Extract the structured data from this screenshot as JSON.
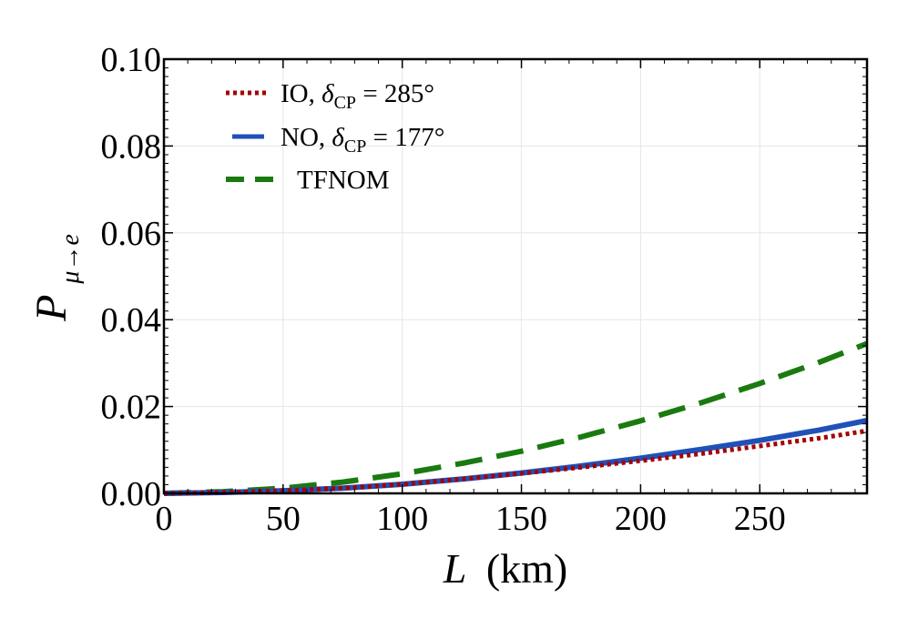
{
  "chart_data": {
    "type": "line",
    "xlabel_var": "L",
    "xlabel_unit": "(km)",
    "ylabel_main": "P",
    "ylabel_sub": "μ→e",
    "xlim": [
      0,
      295
    ],
    "ylim": [
      0,
      0.1
    ],
    "xticks": [
      "0",
      "50",
      "100",
      "150",
      "200",
      "250"
    ],
    "xtick_values": [
      0,
      50,
      100,
      150,
      200,
      250
    ],
    "yticks": [
      "0.00",
      "0.02",
      "0.04",
      "0.06",
      "0.08",
      "0.10"
    ],
    "ytick_values": [
      0,
      0.02,
      0.04,
      0.06,
      0.08,
      0.1
    ],
    "grid": true,
    "legend_position": "top-left",
    "x": [
      0,
      25,
      50,
      75,
      100,
      125,
      150,
      175,
      200,
      225,
      250,
      275,
      295
    ],
    "series": [
      {
        "name": "IO, δ",
        "name_sub": "CP",
        "name_tail": " = 285°",
        "style": "dotted",
        "color": "#a50000",
        "values": [
          0,
          0.0002,
          0.0006,
          0.0012,
          0.0021,
          0.0033,
          0.0046,
          0.006,
          0.0075,
          0.0091,
          0.0109,
          0.0127,
          0.0144
        ]
      },
      {
        "name": "NO, δ",
        "name_sub": "CP",
        "name_tail": " = 177°",
        "style": "solid",
        "color": "#2050b8",
        "values": [
          0,
          0.0002,
          0.0006,
          0.0012,
          0.0021,
          0.0033,
          0.0047,
          0.0063,
          0.0081,
          0.0101,
          0.0122,
          0.0146,
          0.0168
        ]
      },
      {
        "name": "TFNOM",
        "name_sub": "",
        "name_tail": "",
        "style": "dashed",
        "color": "#1a7a10",
        "values": [
          0,
          0.0004,
          0.0012,
          0.0026,
          0.0045,
          0.0069,
          0.0097,
          0.013,
          0.0167,
          0.0208,
          0.0253,
          0.0302,
          0.0345
        ]
      }
    ]
  }
}
